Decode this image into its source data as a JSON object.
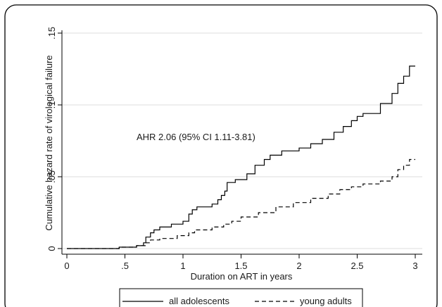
{
  "chart_data": {
    "type": "line",
    "step": true,
    "xlabel": "Duration on ART in years",
    "ylabel": "Cumulative hazard rate of virological failure",
    "xlim": [
      0,
      3
    ],
    "ylim": [
      0,
      0.15
    ],
    "x_ticks": [
      {
        "value": 0,
        "label": "0"
      },
      {
        "value": 0.5,
        "label": ".5"
      },
      {
        "value": 1,
        "label": "1"
      },
      {
        "value": 1.5,
        "label": "1.5"
      },
      {
        "value": 2,
        "label": "2"
      },
      {
        "value": 2.5,
        "label": "2.5"
      },
      {
        "value": 3,
        "label": "3"
      }
    ],
    "y_ticks": [
      {
        "value": 0,
        "label": "0"
      },
      {
        "value": 0.05,
        "label": ".05"
      },
      {
        "value": 0.1,
        "label": ".1"
      },
      {
        "value": 0.15,
        "label": ".15"
      }
    ],
    "grid": "horizontal",
    "legend_position": "bottom",
    "annotation": {
      "text": "AHR 2.06 (95% CI 1.11-3.81)",
      "x": 0.6,
      "y": 0.078
    },
    "series": [
      {
        "name": "all adolescents",
        "dash": "solid",
        "points": [
          [
            0,
            0
          ],
          [
            0.45,
            0.001
          ],
          [
            0.6,
            0.002
          ],
          [
            0.66,
            0.004
          ],
          [
            0.68,
            0.008
          ],
          [
            0.72,
            0.011
          ],
          [
            0.75,
            0.013
          ],
          [
            0.8,
            0.015
          ],
          [
            0.9,
            0.017
          ],
          [
            1.0,
            0.019
          ],
          [
            1.05,
            0.024
          ],
          [
            1.08,
            0.027
          ],
          [
            1.12,
            0.029
          ],
          [
            1.25,
            0.031
          ],
          [
            1.3,
            0.034
          ],
          [
            1.33,
            0.037
          ],
          [
            1.36,
            0.04
          ],
          [
            1.38,
            0.046
          ],
          [
            1.45,
            0.048
          ],
          [
            1.55,
            0.052
          ],
          [
            1.62,
            0.058
          ],
          [
            1.7,
            0.062
          ],
          [
            1.75,
            0.065
          ],
          [
            1.85,
            0.068
          ],
          [
            1.9,
            0.068
          ],
          [
            2.0,
            0.07
          ],
          [
            2.1,
            0.073
          ],
          [
            2.2,
            0.076
          ],
          [
            2.3,
            0.081
          ],
          [
            2.38,
            0.085
          ],
          [
            2.45,
            0.089
          ],
          [
            2.5,
            0.092
          ],
          [
            2.55,
            0.094
          ],
          [
            2.7,
            0.101
          ],
          [
            2.8,
            0.108
          ],
          [
            2.85,
            0.115
          ],
          [
            2.9,
            0.12
          ],
          [
            2.95,
            0.127
          ],
          [
            3.0,
            0.127
          ]
        ]
      },
      {
        "name": "young adults",
        "dash": "dashed",
        "points": [
          [
            0,
            0
          ],
          [
            0.45,
            0.001
          ],
          [
            0.6,
            0.002
          ],
          [
            0.68,
            0.004
          ],
          [
            0.72,
            0.006
          ],
          [
            0.8,
            0.007
          ],
          [
            0.95,
            0.009
          ],
          [
            1.05,
            0.011
          ],
          [
            1.1,
            0.013
          ],
          [
            1.25,
            0.015
          ],
          [
            1.35,
            0.017
          ],
          [
            1.42,
            0.019
          ],
          [
            1.5,
            0.022
          ],
          [
            1.65,
            0.025
          ],
          [
            1.8,
            0.029
          ],
          [
            1.95,
            0.032
          ],
          [
            2.1,
            0.035
          ],
          [
            2.25,
            0.038
          ],
          [
            2.35,
            0.041
          ],
          [
            2.45,
            0.043
          ],
          [
            2.55,
            0.045
          ],
          [
            2.7,
            0.047
          ],
          [
            2.8,
            0.05
          ],
          [
            2.85,
            0.055
          ],
          [
            2.9,
            0.058
          ],
          [
            2.95,
            0.062
          ],
          [
            3.0,
            0.062
          ]
        ]
      }
    ]
  }
}
